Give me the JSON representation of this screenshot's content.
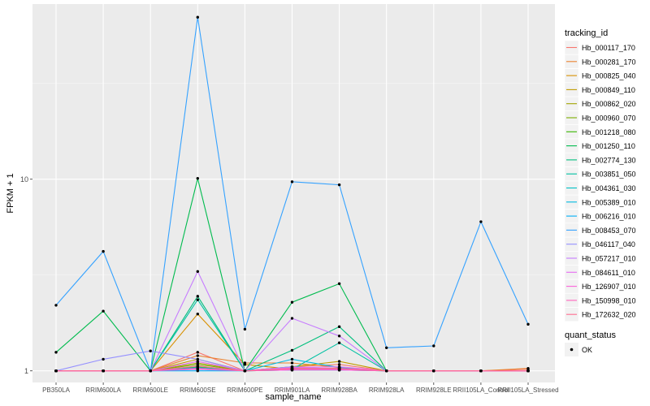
{
  "chart_data": {
    "type": "line",
    "xlabel": "sample_name",
    "ylabel": "FPKM + 1",
    "y_scale": "log10",
    "ylim": [
      0.87,
      82
    ],
    "y_ticks": [
      1,
      10
    ],
    "y_tick_labels": [
      "1",
      "10"
    ],
    "grid": true,
    "categories": [
      "PB350LA",
      "RRIM600LA",
      "RRIM600LE",
      "RRIM600SE",
      "RRIM600PE",
      "RRIM901LA",
      "RRIM928BA",
      "RRIM928LA",
      "RRIM928LE",
      "RRII105LA_Control",
      "RRII105LA_Stressed"
    ],
    "legend_title": "tracking_id",
    "legend_placement": "right",
    "series": [
      {
        "name": "Hb_000117_170",
        "color": "#F8766D",
        "values": [
          1,
          1,
          1,
          1.25,
          1,
          1.05,
          1.08,
          1,
          1,
          1,
          1.02
        ]
      },
      {
        "name": "Hb_000281_170",
        "color": "#EA8331",
        "values": [
          1,
          1,
          1,
          1.2,
          1.1,
          1.1,
          1.04,
          1,
          1,
          1,
          1.03
        ]
      },
      {
        "name": "Hb_000825_040",
        "color": "#D89000",
        "values": [
          1,
          1,
          1,
          1.98,
          1.08,
          1.02,
          1.03,
          1,
          1,
          1,
          1
        ]
      },
      {
        "name": "Hb_000849_110",
        "color": "#C09B00",
        "values": [
          1,
          1,
          1,
          1.15,
          1,
          1.05,
          1.12,
          1,
          1,
          1,
          1
        ]
      },
      {
        "name": "Hb_000862_020",
        "color": "#A3A500",
        "values": [
          1,
          1,
          1,
          1.1,
          1,
          1.02,
          1.02,
          1,
          1,
          1,
          1
        ]
      },
      {
        "name": "Hb_000960_070",
        "color": "#7CAE00",
        "values": [
          1,
          1,
          1,
          1.08,
          1,
          1.03,
          1.03,
          1,
          1,
          1,
          1
        ]
      },
      {
        "name": "Hb_001218_080",
        "color": "#39B600",
        "values": [
          1,
          1,
          1,
          1.05,
          1,
          1.01,
          1.01,
          1,
          1,
          1,
          1
        ]
      },
      {
        "name": "Hb_001250_110",
        "color": "#00BB4E",
        "values": [
          1.25,
          2.05,
          1,
          10.1,
          1,
          2.28,
          2.85,
          1,
          1,
          1,
          1
        ]
      },
      {
        "name": "Hb_002774_130",
        "color": "#00BF7D",
        "values": [
          1,
          1,
          1,
          2.45,
          1,
          1.28,
          1.7,
          1,
          1,
          1,
          1
        ]
      },
      {
        "name": "Hb_003851_050",
        "color": "#00C1A3",
        "values": [
          1,
          1,
          1,
          2.35,
          1,
          1.02,
          1.4,
          1,
          1,
          1,
          1
        ]
      },
      {
        "name": "Hb_004361_030",
        "color": "#00BFC4",
        "values": [
          1,
          1,
          1,
          1.02,
          1,
          1.03,
          1.02,
          1,
          1,
          1,
          1
        ]
      },
      {
        "name": "Hb_005389_010",
        "color": "#00BAE0",
        "values": [
          1,
          1,
          1,
          1.04,
          1,
          1.15,
          1.04,
          1,
          1,
          1,
          1
        ]
      },
      {
        "name": "Hb_006216_010",
        "color": "#00B0F6",
        "values": [
          1,
          1,
          1,
          1,
          1,
          1.01,
          1.01,
          1,
          1,
          1,
          1
        ]
      },
      {
        "name": "Hb_008453_070",
        "color": "#35A2FF",
        "values": [
          2.2,
          4.2,
          1,
          70,
          1.65,
          9.7,
          9.35,
          1.32,
          1.35,
          6,
          1.75
        ]
      },
      {
        "name": "Hb_046117_040",
        "color": "#9590FF",
        "values": [
          1,
          1.15,
          1.27,
          1.15,
          1,
          1.05,
          1.02,
          1,
          1,
          1,
          1
        ]
      },
      {
        "name": "Hb_057217_010",
        "color": "#C77CFF",
        "values": [
          1,
          1,
          1,
          3.3,
          1,
          1.88,
          1.52,
          1,
          1,
          1,
          1
        ]
      },
      {
        "name": "Hb_084611_010",
        "color": "#E76BF3",
        "values": [
          1,
          1,
          1,
          1.12,
          1,
          1.04,
          1.05,
          1,
          1,
          1,
          1
        ]
      },
      {
        "name": "Hb_126907_010",
        "color": "#FA62DB",
        "values": [
          1,
          1,
          1,
          1.02,
          1,
          1.01,
          1.01,
          1,
          1,
          1,
          1
        ]
      },
      {
        "name": "Hb_150998_010",
        "color": "#FF62BC",
        "values": [
          1,
          1,
          1,
          1.03,
          1,
          1.02,
          1.02,
          1,
          1,
          1,
          1
        ]
      },
      {
        "name": "Hb_172632_020",
        "color": "#FF6C91",
        "values": [
          1,
          1,
          1,
          1.06,
          1,
          1.03,
          1.03,
          1,
          1,
          1,
          1
        ]
      }
    ],
    "shape_legend": {
      "title": "quant_status",
      "items": [
        "OK"
      ]
    }
  }
}
